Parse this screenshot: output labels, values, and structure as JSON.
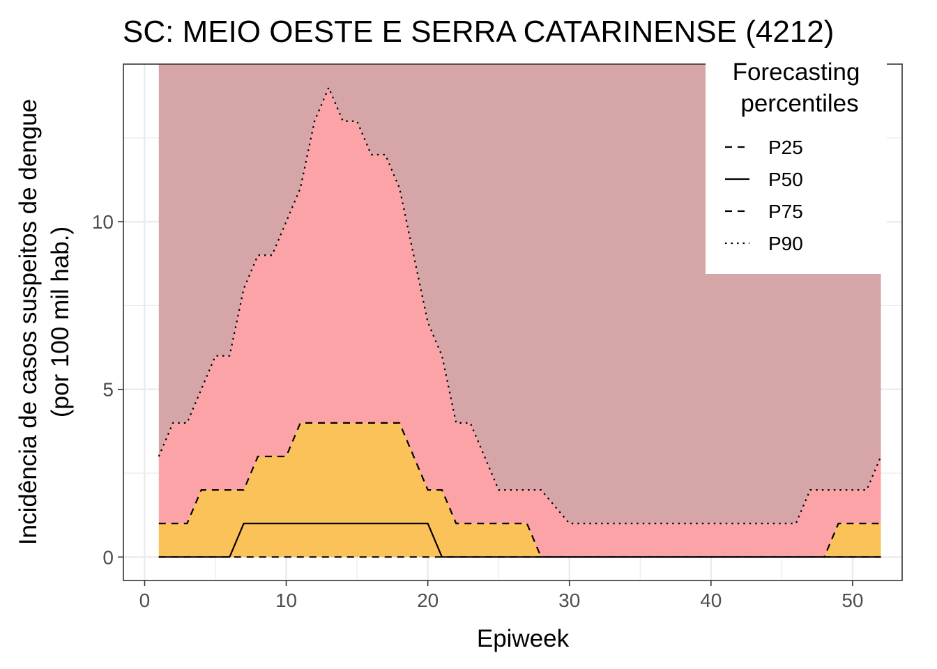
{
  "chart_data": {
    "type": "area",
    "title": "SC: MEIO OESTE E SERRA CATARINENSE (4212)",
    "xlabel": "Epiweek",
    "ylabel_lines": [
      "Incidência de casos suspeitos de dengue",
      "(por 100 mil hab.)"
    ],
    "xlim": [
      -1.5,
      53.5
    ],
    "ylim": [
      -0.7,
      14.7
    ],
    "x_ticks": [
      0,
      10,
      20,
      30,
      40,
      50
    ],
    "x_tick_labels": [
      "0",
      "10",
      "20",
      "30",
      "40",
      "50"
    ],
    "y_ticks": [
      0,
      5,
      10
    ],
    "y_tick_labels": [
      "0",
      "5",
      "10"
    ],
    "grid": true,
    "legend": {
      "position": "top-right",
      "title_lines": [
        "Forecasting",
        "percentiles"
      ],
      "entries": [
        {
          "label": "P25",
          "linetype": "dashed"
        },
        {
          "label": "P50",
          "linetype": "solid"
        },
        {
          "label": "P75",
          "linetype": "dashed"
        },
        {
          "label": "P90",
          "linetype": "dotted"
        }
      ]
    },
    "bands": {
      "above_p90": "#d6a5a7",
      "p75_to_p90": "#fba3a6",
      "p25_to_p75": "#fbc25a"
    },
    "x": [
      1,
      2,
      3,
      4,
      5,
      6,
      7,
      8,
      9,
      10,
      11,
      12,
      13,
      14,
      15,
      16,
      17,
      18,
      19,
      20,
      21,
      22,
      23,
      24,
      25,
      26,
      27,
      28,
      29,
      30,
      31,
      32,
      33,
      34,
      35,
      36,
      37,
      38,
      39,
      40,
      41,
      42,
      43,
      44,
      45,
      46,
      47,
      48,
      49,
      50,
      51,
      52
    ],
    "series": [
      {
        "name": "P25",
        "values": [
          0,
          0,
          0,
          0,
          0,
          0,
          0,
          0,
          0,
          0,
          0,
          0,
          0,
          0,
          0,
          0,
          0,
          0,
          0,
          0,
          0,
          0,
          0,
          0,
          0,
          0,
          0,
          0,
          0,
          0,
          0,
          0,
          0,
          0,
          0,
          0,
          0,
          0,
          0,
          0,
          0,
          0,
          0,
          0,
          0,
          0,
          0,
          0,
          0,
          0,
          0,
          0
        ]
      },
      {
        "name": "P50",
        "values": [
          0,
          0,
          0,
          0,
          0,
          0,
          1,
          1,
          1,
          1,
          1,
          1,
          1,
          1,
          1,
          1,
          1,
          1,
          1,
          1,
          0,
          0,
          0,
          0,
          0,
          0,
          0,
          0,
          0,
          0,
          0,
          0,
          0,
          0,
          0,
          0,
          0,
          0,
          0,
          0,
          0,
          0,
          0,
          0,
          0,
          0,
          0,
          0,
          0,
          0,
          0,
          0
        ]
      },
      {
        "name": "P75",
        "values": [
          1,
          1,
          1,
          2,
          2,
          2,
          2,
          3,
          3,
          3,
          4,
          4,
          4,
          4,
          4,
          4,
          4,
          4,
          3,
          2,
          2,
          1,
          1,
          1,
          1,
          1,
          1,
          0,
          0,
          0,
          0,
          0,
          0,
          0,
          0,
          0,
          0,
          0,
          0,
          0,
          0,
          0,
          0,
          0,
          0,
          0,
          0,
          0,
          1,
          1,
          1,
          1
        ]
      },
      {
        "name": "P90",
        "values": [
          3,
          4,
          4,
          5,
          6,
          6,
          8,
          9,
          9,
          10,
          11,
          13,
          14,
          13,
          13,
          12,
          12,
          11,
          9,
          7,
          6,
          4,
          4,
          3,
          2,
          2,
          2,
          2,
          1.5,
          1,
          1,
          1,
          1,
          1,
          1,
          1,
          1,
          1,
          1,
          1,
          1,
          1,
          1,
          1,
          1,
          1,
          2,
          2,
          2,
          2,
          2,
          3
        ]
      }
    ]
  }
}
